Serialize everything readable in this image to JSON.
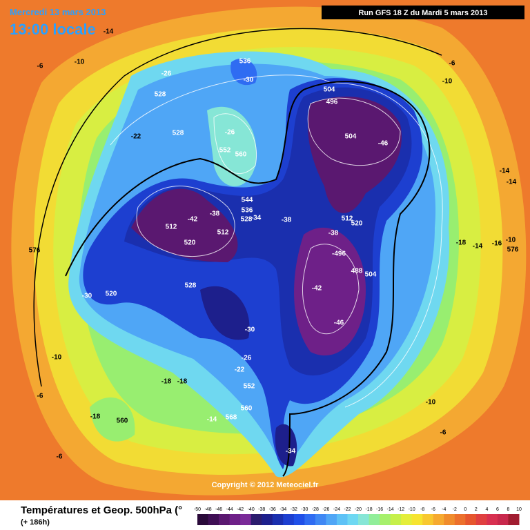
{
  "header": {
    "date": "Mercredi 13 mars 2013",
    "time": "13:00 locale",
    "run": "Run GFS 18 Z du Mardi 5 mars 2013"
  },
  "footer": {
    "title": "Températures et Geop. 500hPa (°",
    "lead": "(+ 186h)",
    "copyright": "Copyright © 2012 Meteociel.fr"
  },
  "colorbar": {
    "labels": [
      -50,
      -48,
      -46,
      -44,
      -42,
      -40,
      -38,
      -36,
      -34,
      -32,
      -30,
      -28,
      -26,
      -24,
      -22,
      -20,
      -18,
      -16,
      -14,
      -12,
      -10,
      -8,
      -6,
      -4,
      -2,
      0,
      2,
      4,
      6,
      8,
      10
    ],
    "colors": [
      "#2a0a3a",
      "#3f0f55",
      "#5a1870",
      "#6e2088",
      "#7a2a98",
      "#2b1c6e",
      "#1d1f8c",
      "#1a2fae",
      "#1d3fd0",
      "#2050e8",
      "#2f6cf2",
      "#3f88f4",
      "#4fa6f6",
      "#5dc2f6",
      "#6ed8f2",
      "#86e6d6",
      "#90ee9a",
      "#a6f06c",
      "#c6f04a",
      "#e4ee3a",
      "#f6e430",
      "#f8c830",
      "#f6aa30",
      "#f08c2c",
      "#ec702c",
      "#e6562e",
      "#e04040",
      "#d83050",
      "#c8284c",
      "#a01c30"
    ]
  },
  "map_labels": [
    "-14",
    "-6",
    "-10",
    "-26",
    "528",
    "536",
    "-30",
    "528",
    "-22",
    "-26",
    "552",
    "560",
    "504",
    "496",
    "504",
    "-46",
    "-6",
    "-10",
    "-14",
    "-14",
    "544",
    "536",
    "528",
    "-34",
    "-38",
    "-42",
    "512",
    "512",
    "520",
    "-38",
    "512",
    "520",
    "-38",
    "-496",
    "488",
    "504",
    "-42",
    "-46",
    "576",
    "-18",
    "-14",
    "-16",
    "-10",
    "576",
    "528",
    "-30",
    "520",
    "-30",
    "-10",
    "-26",
    "-22",
    "552",
    "-18",
    "-18",
    "-6",
    "-10",
    "-18",
    "560",
    "-14",
    "568",
    "560",
    "-6",
    "-6",
    "-34"
  ]
}
